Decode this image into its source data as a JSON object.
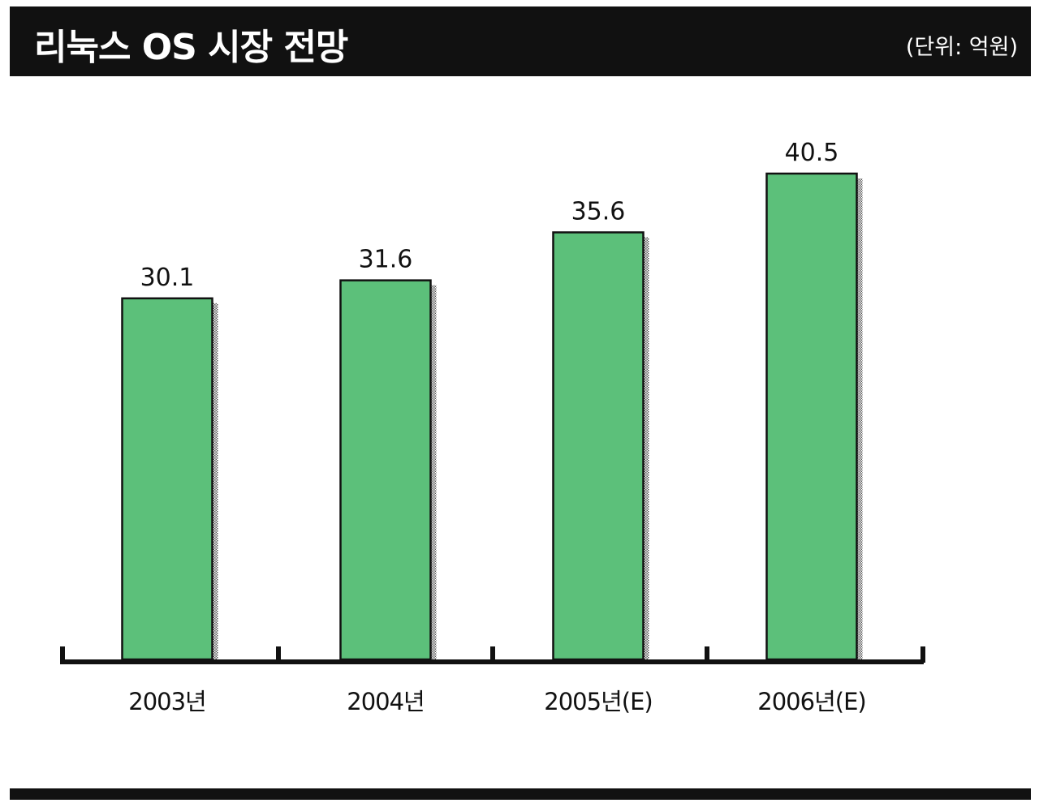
{
  "header": {
    "title": "리눅스 OS 시장 전망",
    "unit": "(단위: 억원)"
  },
  "colors": {
    "bar": "#5cc07a",
    "bar_border": "#111111",
    "header_bg": "#111111"
  },
  "chart_data": {
    "type": "bar",
    "title": "리눅스 OS 시장 전망",
    "unit": "(단위: 억원)",
    "categories": [
      "2003년",
      "2004년",
      "2005년(E)",
      "2006년(E)"
    ],
    "values": [
      30.1,
      31.6,
      35.6,
      40.5
    ],
    "value_labels": [
      "30.1",
      "31.6",
      "35.6",
      "40.5"
    ],
    "xlabel": "",
    "ylabel": "",
    "grid": false,
    "legend": "none"
  }
}
